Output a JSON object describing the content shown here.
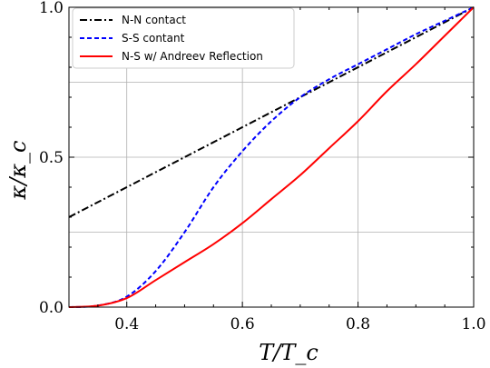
{
  "chart_data": {
    "type": "line",
    "title": "",
    "xlabel": "T/T_c",
    "ylabel": "κ/κ_c",
    "xlim": [
      0.3,
      1.0
    ],
    "ylim": [
      0.0,
      1.0
    ],
    "grid": true,
    "legend_position": "top-left",
    "x_ticks": [
      0.4,
      0.6,
      0.8,
      1.0
    ],
    "x_tick_labels": [
      "0.4",
      "0.6",
      "0.8",
      "1.0"
    ],
    "y_ticks": [
      0.0,
      0.5,
      1.0
    ],
    "y_tick_labels": [
      "0.0",
      "0.5",
      "1.0"
    ],
    "series": [
      {
        "name": "N-N contact",
        "color": "#000000",
        "style": "dashdot",
        "x": [
          0.3,
          1.0
        ],
        "y": [
          0.3,
          1.0
        ]
      },
      {
        "name": "S-S contant",
        "color": "#0000ff",
        "style": "dashed",
        "x": [
          0.3,
          0.35,
          0.4,
          0.45,
          0.5,
          0.55,
          0.6,
          0.65,
          0.7,
          0.75,
          0.8,
          0.85,
          0.9,
          0.95,
          1.0
        ],
        "y": [
          0.0,
          0.005,
          0.035,
          0.12,
          0.25,
          0.4,
          0.52,
          0.62,
          0.7,
          0.76,
          0.81,
          0.86,
          0.91,
          0.955,
          1.0
        ]
      },
      {
        "name": "N-S w/ Andreev Reflection",
        "color": "#ff0000",
        "style": "solid",
        "x": [
          0.3,
          0.35,
          0.4,
          0.45,
          0.5,
          0.55,
          0.6,
          0.65,
          0.7,
          0.75,
          0.8,
          0.85,
          0.9,
          0.95,
          1.0
        ],
        "y": [
          0.0,
          0.005,
          0.03,
          0.09,
          0.15,
          0.21,
          0.28,
          0.36,
          0.44,
          0.53,
          0.62,
          0.72,
          0.81,
          0.905,
          1.0
        ]
      }
    ]
  }
}
